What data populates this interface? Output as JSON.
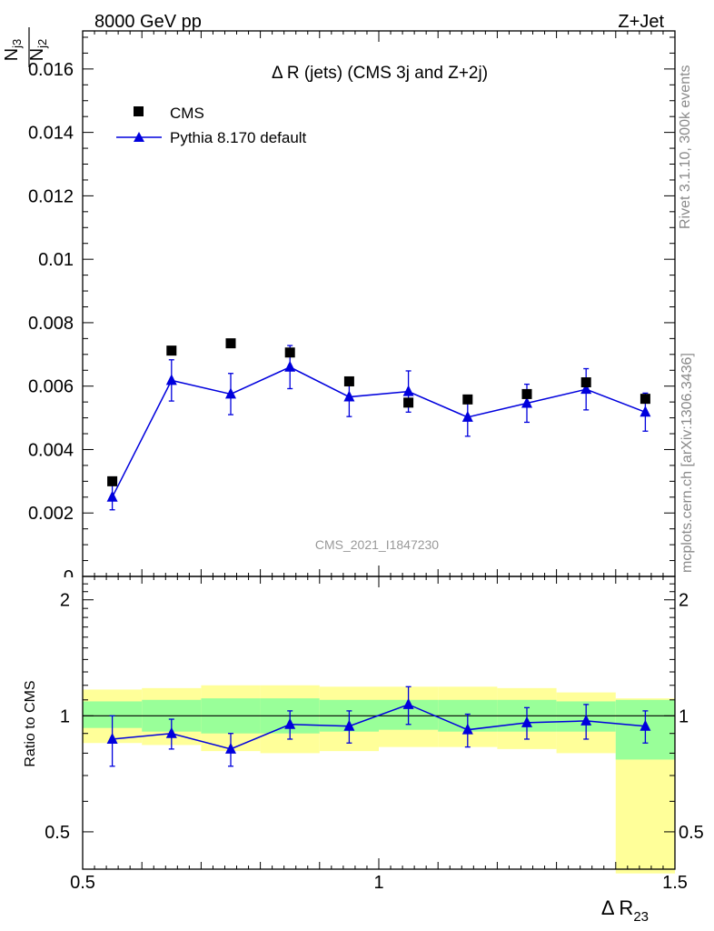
{
  "header": {
    "left": "8000 GeV pp",
    "right": "Z+Jet"
  },
  "side": {
    "rivet": "Rivet 3.1.10,  300k events",
    "mcplots": "mcplots.cern.ch [arXiv:1306.3436]"
  },
  "chart_data": [
    {
      "type": "scatter",
      "title": "Δ R (jets) (CMS 3j and Z+2j)",
      "watermark": "CMS_2021_I1847230",
      "ylabel": {
        "num": "N",
        "num_sub": "j3",
        "den": "N",
        "den_sub": "j2"
      },
      "xlim": [
        0.5,
        1.5
      ],
      "ylim": [
        0,
        0.0172
      ],
      "yticks": [
        "0.002",
        "0.004",
        "0.006",
        "0.008",
        "0.01",
        "0.012",
        "0.014",
        "0.016"
      ],
      "ytick_values": [
        0.002,
        0.004,
        0.006,
        0.008,
        0.01,
        0.012,
        0.014,
        0.016
      ],
      "legend_position": "top-left",
      "series": [
        {
          "name": "CMS",
          "color": "#000000",
          "marker": "square",
          "x": [
            0.55,
            0.65,
            0.75,
            0.85,
            0.95,
            1.05,
            1.15,
            1.25,
            1.35,
            1.45
          ],
          "y": [
            0.003,
            0.00712,
            0.00735,
            0.00706,
            0.00615,
            0.00548,
            0.00558,
            0.00575,
            0.00612,
            0.0056
          ]
        },
        {
          "name": "Pythia 8.170 default",
          "color": "#0000dd",
          "marker": "triangle",
          "x": [
            0.55,
            0.65,
            0.75,
            0.85,
            0.95,
            1.05,
            1.15,
            1.25,
            1.35,
            1.45
          ],
          "y": [
            0.0025,
            0.00618,
            0.00575,
            0.0066,
            0.00566,
            0.00583,
            0.00502,
            0.00546,
            0.0059,
            0.00518
          ],
          "yerr": [
            0.0004,
            0.00065,
            0.00065,
            0.00068,
            0.00062,
            0.00065,
            0.0006,
            0.0006,
            0.00065,
            0.0006
          ]
        }
      ]
    },
    {
      "type": "scatter",
      "ylabel": "Ratio to CMS",
      "xlabel": {
        "main": "Δ R",
        "sub": "23"
      },
      "xlim": [
        0.5,
        1.5
      ],
      "ylim": [
        0.4,
        2.3
      ],
      "xticks": [
        "0.5",
        "1",
        "1.5"
      ],
      "xtick_values": [
        0.5,
        1.0,
        1.5
      ],
      "yticks": [
        "0.5",
        "1",
        "2"
      ],
      "ytick_values": [
        0.5,
        1.0,
        2.0
      ],
      "band_edges": [
        0.5,
        0.6,
        0.7,
        0.8,
        0.9,
        1.0,
        1.1,
        1.2,
        1.3,
        1.4,
        1.5
      ],
      "outer_band": {
        "color": "#ffff99",
        "lo": [
          0.85,
          0.84,
          0.81,
          0.8,
          0.81,
          0.83,
          0.83,
          0.82,
          0.8,
          0.39
        ],
        "hi": [
          1.17,
          1.18,
          1.2,
          1.2,
          1.19,
          1.19,
          1.19,
          1.18,
          1.15,
          1.11
        ]
      },
      "inner_band": {
        "color": "#99ff99",
        "lo": [
          0.93,
          0.91,
          0.9,
          0.9,
          0.91,
          0.92,
          0.91,
          0.91,
          0.91,
          0.77
        ],
        "hi": [
          1.09,
          1.1,
          1.11,
          1.11,
          1.1,
          1.1,
          1.1,
          1.1,
          1.09,
          1.1
        ]
      },
      "series": [
        {
          "name": "Pythia 8.170 default",
          "color": "#0000dd",
          "marker": "triangle",
          "x": [
            0.55,
            0.65,
            0.75,
            0.85,
            0.95,
            1.05,
            1.15,
            1.25,
            1.35,
            1.45
          ],
          "y": [
            0.87,
            0.9,
            0.82,
            0.95,
            0.94,
            1.07,
            0.92,
            0.96,
            0.97,
            0.94
          ],
          "yerr": [
            0.13,
            0.08,
            0.08,
            0.08,
            0.09,
            0.12,
            0.09,
            0.09,
            0.1,
            0.09
          ]
        }
      ]
    }
  ]
}
